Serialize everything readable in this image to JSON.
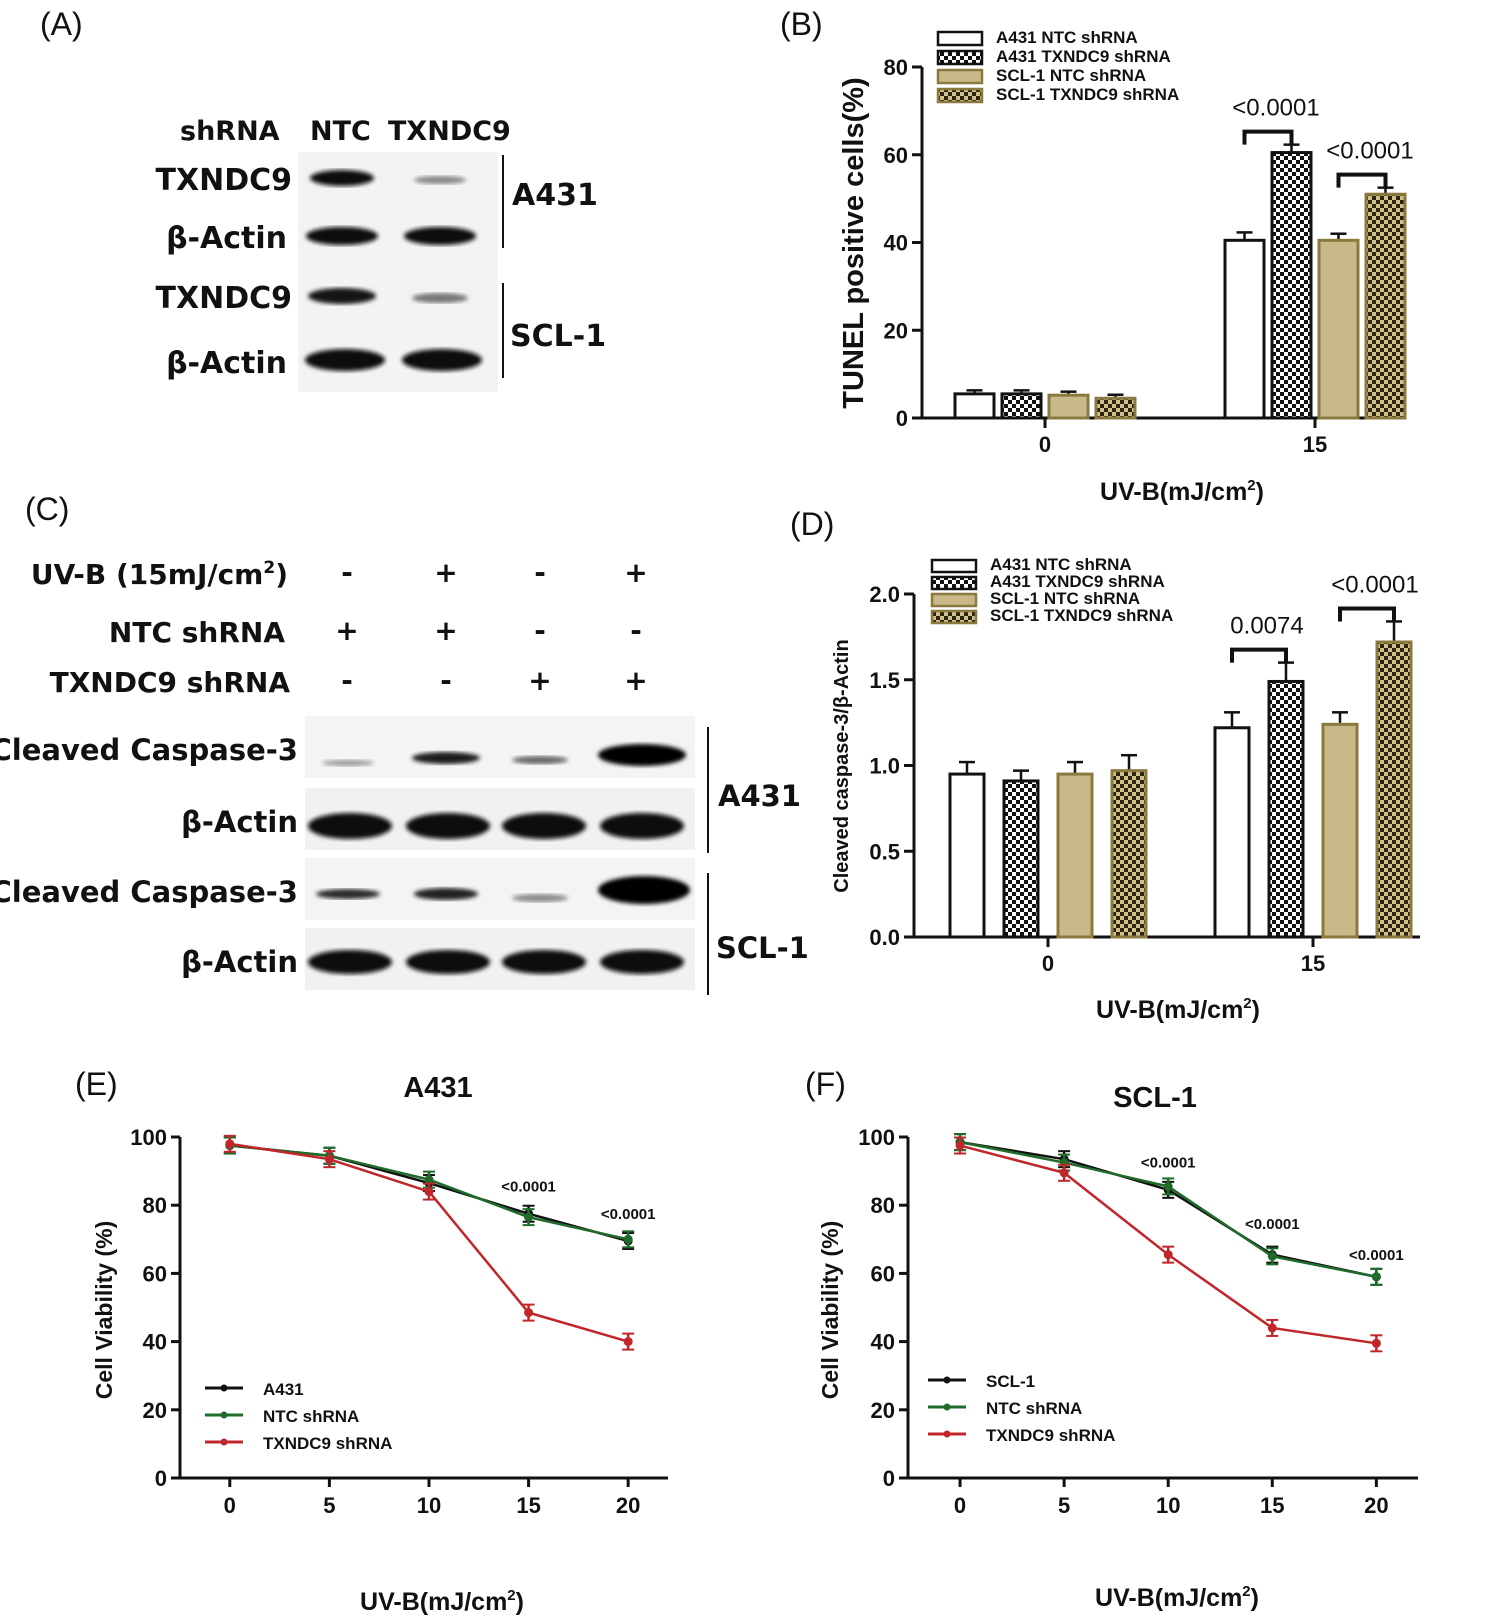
{
  "panel_labels": {
    "A": "(A)",
    "B": "(B)",
    "C": "(C)",
    "D": "(D)",
    "E": "(E)",
    "F": "(F)"
  },
  "blot_a": {
    "header": {
      "shrna": "shRNA",
      "ntc": "NTC",
      "txndc9": "TXNDC9"
    },
    "rows": [
      "TXNDC9",
      "β-Actin",
      "TXNDC9",
      "β-Actin"
    ],
    "cell_lines": [
      "A431",
      "SCL-1"
    ]
  },
  "blot_c": {
    "conditions": [
      {
        "label_main": "UV-B (15mJ/cm",
        "label_sup": "2",
        "label_end": ")",
        "signs": [
          "-",
          "+",
          "-",
          "+"
        ]
      },
      {
        "label_main": "NTC shRNA",
        "label_sup": "",
        "label_end": "",
        "signs": [
          "+",
          "+",
          "-",
          "-"
        ]
      },
      {
        "label_main": "TXNDC9 shRNA",
        "label_sup": "",
        "label_end": "",
        "signs": [
          "-",
          "-",
          "+",
          "+"
        ]
      }
    ],
    "rows": [
      "Cleaved Caspase-3",
      "β-Actin",
      "Cleaved Caspase-3",
      "β-Actin"
    ],
    "cell_lines": [
      "A431",
      "SCL-1"
    ]
  },
  "colors": {
    "tan": "#c9b98a",
    "tan_dark": "#8a7a40",
    "black": "#111111",
    "green": "#1e6b2a",
    "red": "#c0262a"
  },
  "chart_data": [
    {
      "id": "B",
      "type": "bar",
      "title": "",
      "ylabel": "TUNEL positive cells(%)",
      "xlabel_main": "UV-B(mJ/cm",
      "xlabel_sup": "2",
      "xlabel_end": ")",
      "ylim": [
        0,
        80
      ],
      "yticks": [
        "0",
        "20",
        "40",
        "60",
        "80"
      ],
      "categories": [
        "0",
        "15"
      ],
      "series": [
        {
          "name": "A431 NTC shRNA",
          "pattern": "white",
          "values": [
            5.5,
            40.5
          ],
          "errors": [
            0.8,
            1.8
          ]
        },
        {
          "name": "A431 TXNDC9 shRNA",
          "pattern": "check",
          "values": [
            5.5,
            60.5
          ],
          "errors": [
            0.8,
            1.8
          ]
        },
        {
          "name": "SCL-1 NTC shRNA",
          "pattern": "tan",
          "values": [
            5.2,
            40.5
          ],
          "errors": [
            0.8,
            1.5
          ]
        },
        {
          "name": "SCL-1 TXNDC9 shRNA",
          "pattern": "tancheck",
          "values": [
            4.5,
            51.0
          ],
          "errors": [
            0.8,
            1.5
          ]
        }
      ],
      "annotations": [
        {
          "text": "<0.0001",
          "between": [
            0,
            1
          ],
          "category": 1
        },
        {
          "text": "<0.0001",
          "between": [
            2,
            3
          ],
          "category": 1
        }
      ]
    },
    {
      "id": "D",
      "type": "bar",
      "title": "",
      "ylabel": "Cleaved caspase-3/β-Actin",
      "xlabel_main": "UV-B(mJ/cm",
      "xlabel_sup": "2",
      "xlabel_end": ")",
      "ylim": [
        0,
        2.0
      ],
      "yticks": [
        "0.0",
        "0.5",
        "1.0",
        "1.5",
        "2.0"
      ],
      "categories": [
        "0",
        "15"
      ],
      "series": [
        {
          "name": "A431 NTC shRNA",
          "pattern": "white",
          "values": [
            0.95,
            1.22
          ],
          "errors": [
            0.07,
            0.09
          ]
        },
        {
          "name": "A431 TXNDC9 shRNA",
          "pattern": "check",
          "values": [
            0.91,
            1.49
          ],
          "errors": [
            0.06,
            0.11
          ]
        },
        {
          "name": "SCL-1 NTC shRNA",
          "pattern": "tan",
          "values": [
            0.95,
            1.24
          ],
          "errors": [
            0.07,
            0.07
          ]
        },
        {
          "name": "SCL-1 TXNDC9 shRNA",
          "pattern": "tancheck",
          "values": [
            0.97,
            1.72
          ],
          "errors": [
            0.09,
            0.12
          ]
        }
      ],
      "annotations": [
        {
          "text": "0.0074",
          "between": [
            0,
            1
          ],
          "category": 1
        },
        {
          "text": "<0.0001",
          "between": [
            2,
            3
          ],
          "category": 1
        }
      ]
    },
    {
      "id": "E",
      "type": "line",
      "title": "A431",
      "ylabel": "Cell Viability (%)",
      "xlabel_main": "UV-B(mJ/cm",
      "xlabel_sup": "2",
      "xlabel_end": ")",
      "ylim": [
        0,
        100
      ],
      "xlim": [
        -2.5,
        22
      ],
      "yticks": [
        "0",
        "20",
        "40",
        "60",
        "80",
        "100"
      ],
      "x": [
        0,
        5,
        10,
        15,
        20
      ],
      "series": [
        {
          "name": "A431",
          "color": "#111111",
          "values": [
            97.5,
            94.5,
            86.5,
            77.5,
            69.5
          ]
        },
        {
          "name": "NTC shRNA",
          "color": "#1e6b2a",
          "values": [
            97.5,
            94.5,
            87.5,
            76.5,
            70.0
          ]
        },
        {
          "name": "TXNDC9 shRNA",
          "color": "#c0262a",
          "values": [
            98.0,
            93.5,
            84.0,
            48.5,
            40.0
          ]
        }
      ],
      "annotations": [
        {
          "text": "<0.0001",
          "x": 15,
          "y": 84
        },
        {
          "text": "<0.0001",
          "x": 20,
          "y": 76
        }
      ]
    },
    {
      "id": "F",
      "type": "line",
      "title": "SCL-1",
      "ylabel": "Cell Viability (%)",
      "xlabel_main": "UV-B(mJ/cm",
      "xlabel_sup": "2",
      "xlabel_end": ")",
      "ylim": [
        0,
        100
      ],
      "xlim": [
        -2.5,
        22
      ],
      "yticks": [
        "0",
        "20",
        "40",
        "60",
        "80",
        "100"
      ],
      "x": [
        0,
        5,
        10,
        15,
        20
      ],
      "series": [
        {
          "name": "SCL-1",
          "color": "#111111",
          "values": [
            98.5,
            93.5,
            84.5,
            65.5,
            59.0
          ]
        },
        {
          "name": "NTC shRNA",
          "color": "#1e6b2a",
          "values": [
            98.5,
            92.5,
            85.5,
            65.0,
            59.0
          ]
        },
        {
          "name": "TXNDC9 shRNA",
          "color": "#c0262a",
          "values": [
            97.5,
            89.5,
            65.5,
            44.0,
            39.5
          ]
        }
      ],
      "annotations": [
        {
          "text": "<0.0001",
          "x": 10,
          "y": 91
        },
        {
          "text": "<0.0001",
          "x": 15,
          "y": 73
        },
        {
          "text": "<0.0001",
          "x": 20,
          "y": 64
        }
      ]
    }
  ]
}
